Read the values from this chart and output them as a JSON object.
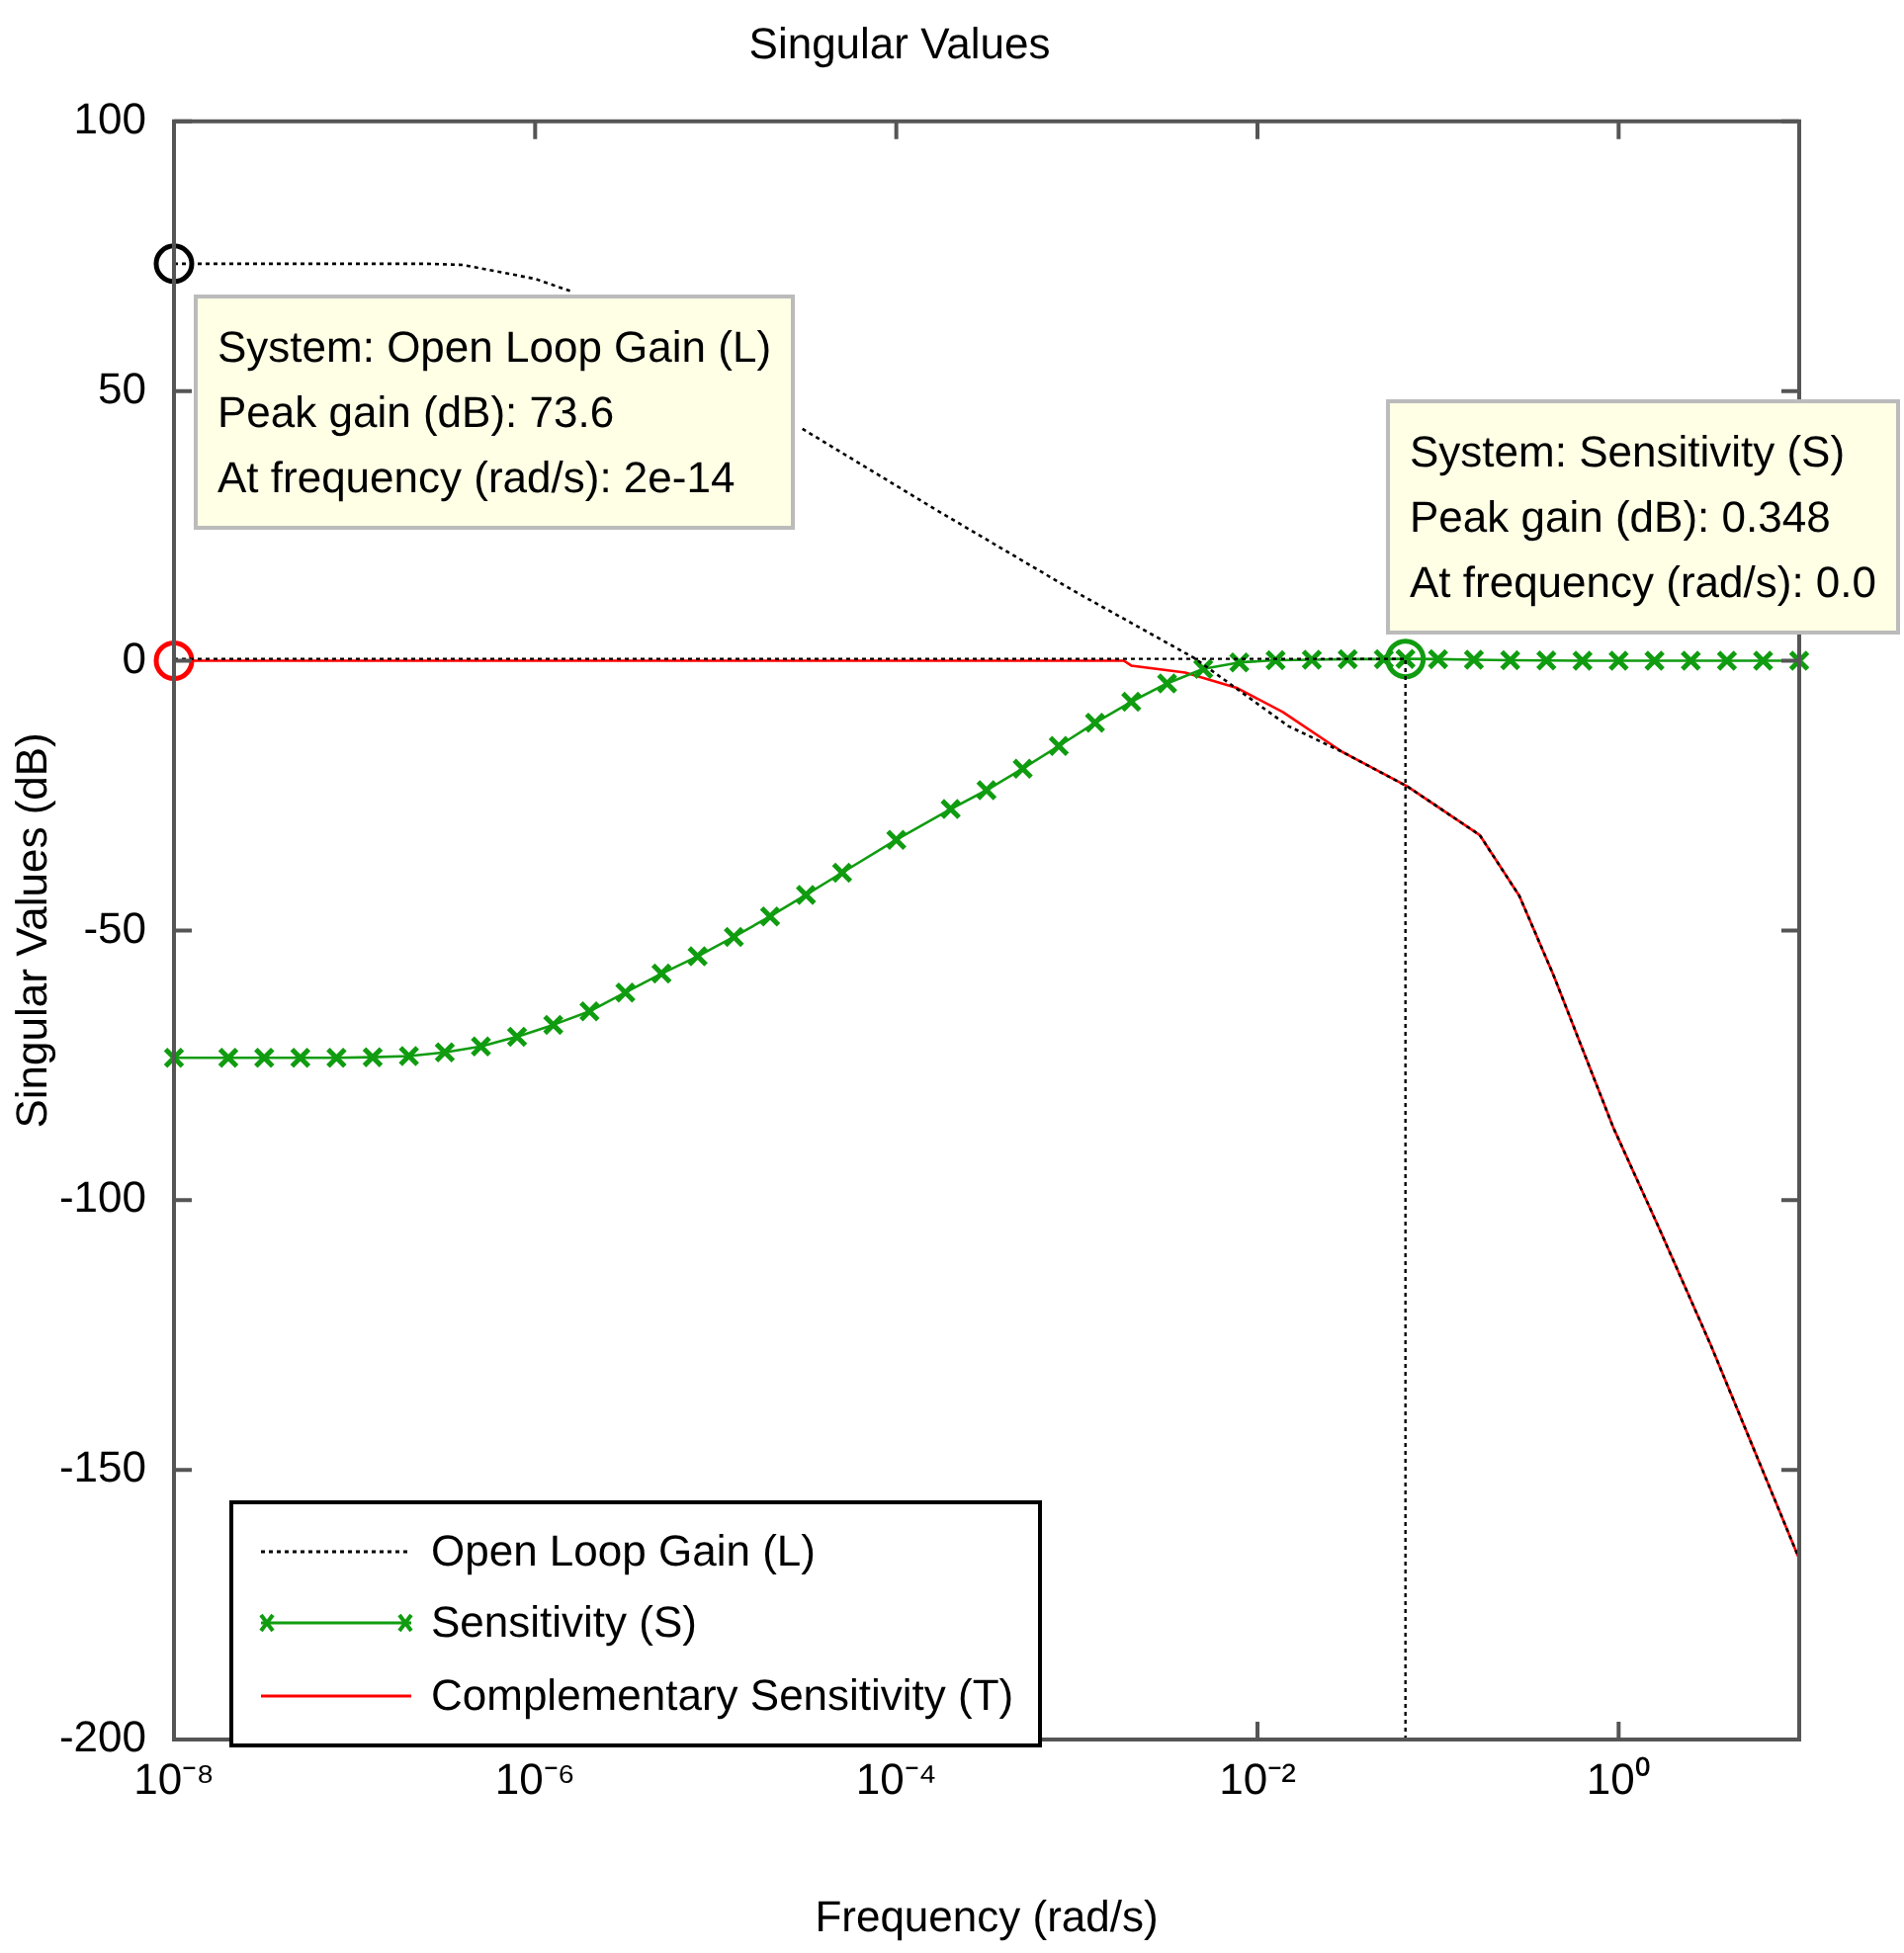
{
  "chart_data": {
    "type": "line",
    "title": "Singular Values",
    "xlabel": "Frequency (rad/s)",
    "ylabel": "Singular Values (dB)",
    "log": "x",
    "grid": false,
    "legend": "bottom left",
    "xlim": [
      1e-08,
      10
    ],
    "xticks": [
      {
        "value": 1e-08,
        "label": "10⁻⁸"
      },
      {
        "value": 1e-06,
        "label": "10⁻⁶"
      },
      {
        "value": 0.0001,
        "label": "10⁻⁴"
      },
      {
        "value": 0.01,
        "label": "10⁻²"
      },
      {
        "value": 1,
        "label": "10⁰"
      }
    ],
    "ylim": [
      -200,
      100
    ],
    "yticks": [
      -200,
      -150,
      -100,
      -50,
      0,
      50,
      100
    ],
    "series": [
      {
        "name": "Open Loop Gain (L)",
        "color": "#000000",
        "line_style": "dotted",
        "marker": "none",
        "x": [
          1e-08,
          2.5e-07,
          3.98e-07,
          1e-06,
          1.58e-06,
          3.16e-06,
          1e-05,
          2.19e-05,
          3.02e-05,
          0.000162,
          0.000955,
          0.00447,
          0.0148,
          0.0295,
          0.0676,
          0.17,
          0.282,
          0.436,
          0.933,
          1.66,
          3.24,
          10
        ],
        "values": [
          73.6,
          73.6,
          73.4,
          70.8,
          68.5,
          null,
          null,
          null,
          43,
          28.2,
          13,
          0.5,
          -12.1,
          -16.9,
          -23.3,
          -32.3,
          -43.6,
          -58.3,
          -86.5,
          -104.9,
          -126.9,
          -166.5
        ]
      },
      {
        "name": "Sensitivity (S)",
        "color": "#109c10",
        "line_style": "solid",
        "marker": "cross",
        "x": [
          1e-08,
          2e-08,
          3.16e-08,
          5.01e-08,
          7.94e-08,
          1.26e-07,
          2e-07,
          3.16e-07,
          5.01e-07,
          7.94e-07,
          1.26e-06,
          2e-06,
          3.16e-06,
          5.01e-06,
          7.94e-06,
          1.26e-05,
          2e-05,
          3.16e-05,
          5.01e-05,
          0.0001,
          0.0002,
          0.000316,
          0.000501,
          0.000794,
          0.00126,
          0.002,
          0.00316,
          0.00501,
          0.00794,
          0.0126,
          0.02,
          0.0316,
          0.0501,
          0.066,
          0.1,
          0.158,
          0.251,
          0.398,
          0.631,
          1,
          1.58,
          2.51,
          3.98,
          6.31,
          10
        ],
        "values": [
          -73.6,
          -73.6,
          -73.6,
          -73.6,
          -73.6,
          -73.5,
          -73.3,
          -72.6,
          -71.5,
          -69.7,
          -67.5,
          -65,
          -61.5,
          -58,
          -54.8,
          -51.2,
          -47.4,
          -43.4,
          -39.3,
          -33.2,
          -27.5,
          -24,
          -20,
          -15.8,
          -11.5,
          -7.6,
          -4.2,
          -1.5,
          -0.3,
          0.1,
          0.2,
          0.3,
          0.3,
          0.348,
          0.3,
          0.2,
          0.1,
          0.05,
          0,
          0,
          0,
          0,
          0,
          0,
          0
        ]
      },
      {
        "name": "Complementary Sensitivity (T)",
        "color": "#ff0000",
        "line_style": "solid",
        "marker": "none",
        "x": [
          1e-08,
          0.00182,
          0.002,
          0.00398,
          0.00776,
          0.0138,
          0.0295,
          0.0676,
          0.17,
          0.282,
          0.436,
          0.933,
          1.66,
          3.24,
          10
        ],
        "values": [
          0,
          0,
          -0.9,
          -2.2,
          -5.1,
          -9.5,
          -16.9,
          -23.3,
          -32.3,
          -43.6,
          -58.3,
          -86.5,
          -104.9,
          -126.9,
          -166.5
        ]
      },
      {
        "type": "scatter",
        "color": "#000000",
        "marker": "circle",
        "x": [
          1e-08
        ],
        "values": [
          73.6
        ]
      },
      {
        "type": "scatter",
        "color": "#ff0000",
        "marker": "circle",
        "x": [
          1e-08
        ],
        "values": [
          0
        ]
      },
      {
        "type": "scatter",
        "color": "#109c10",
        "marker": "circle",
        "x": [
          0.066
        ],
        "values": [
          0.348
        ]
      }
    ],
    "ref_lines": [
      {
        "axis": "x",
        "value": 0.066,
        "color": "#000000",
        "line_style": "dotted"
      },
      {
        "axis": "y",
        "value": 0.348,
        "color": "#000000",
        "line_style": "dotted"
      }
    ],
    "annotations": [
      {
        "text": "System: Open Loop Gain (L)\nPeak gain (dB): 73.6\nAt frequency (rad/s): 2e-14",
        "x": 1e-08,
        "y": 73.6
      },
      {
        "text": "System: Sensitivity (S)\nPeak gain (dB): 0.348\nAt frequency (rad/s): 0.0",
        "x": 0.066,
        "y": 0.348
      }
    ]
  }
}
